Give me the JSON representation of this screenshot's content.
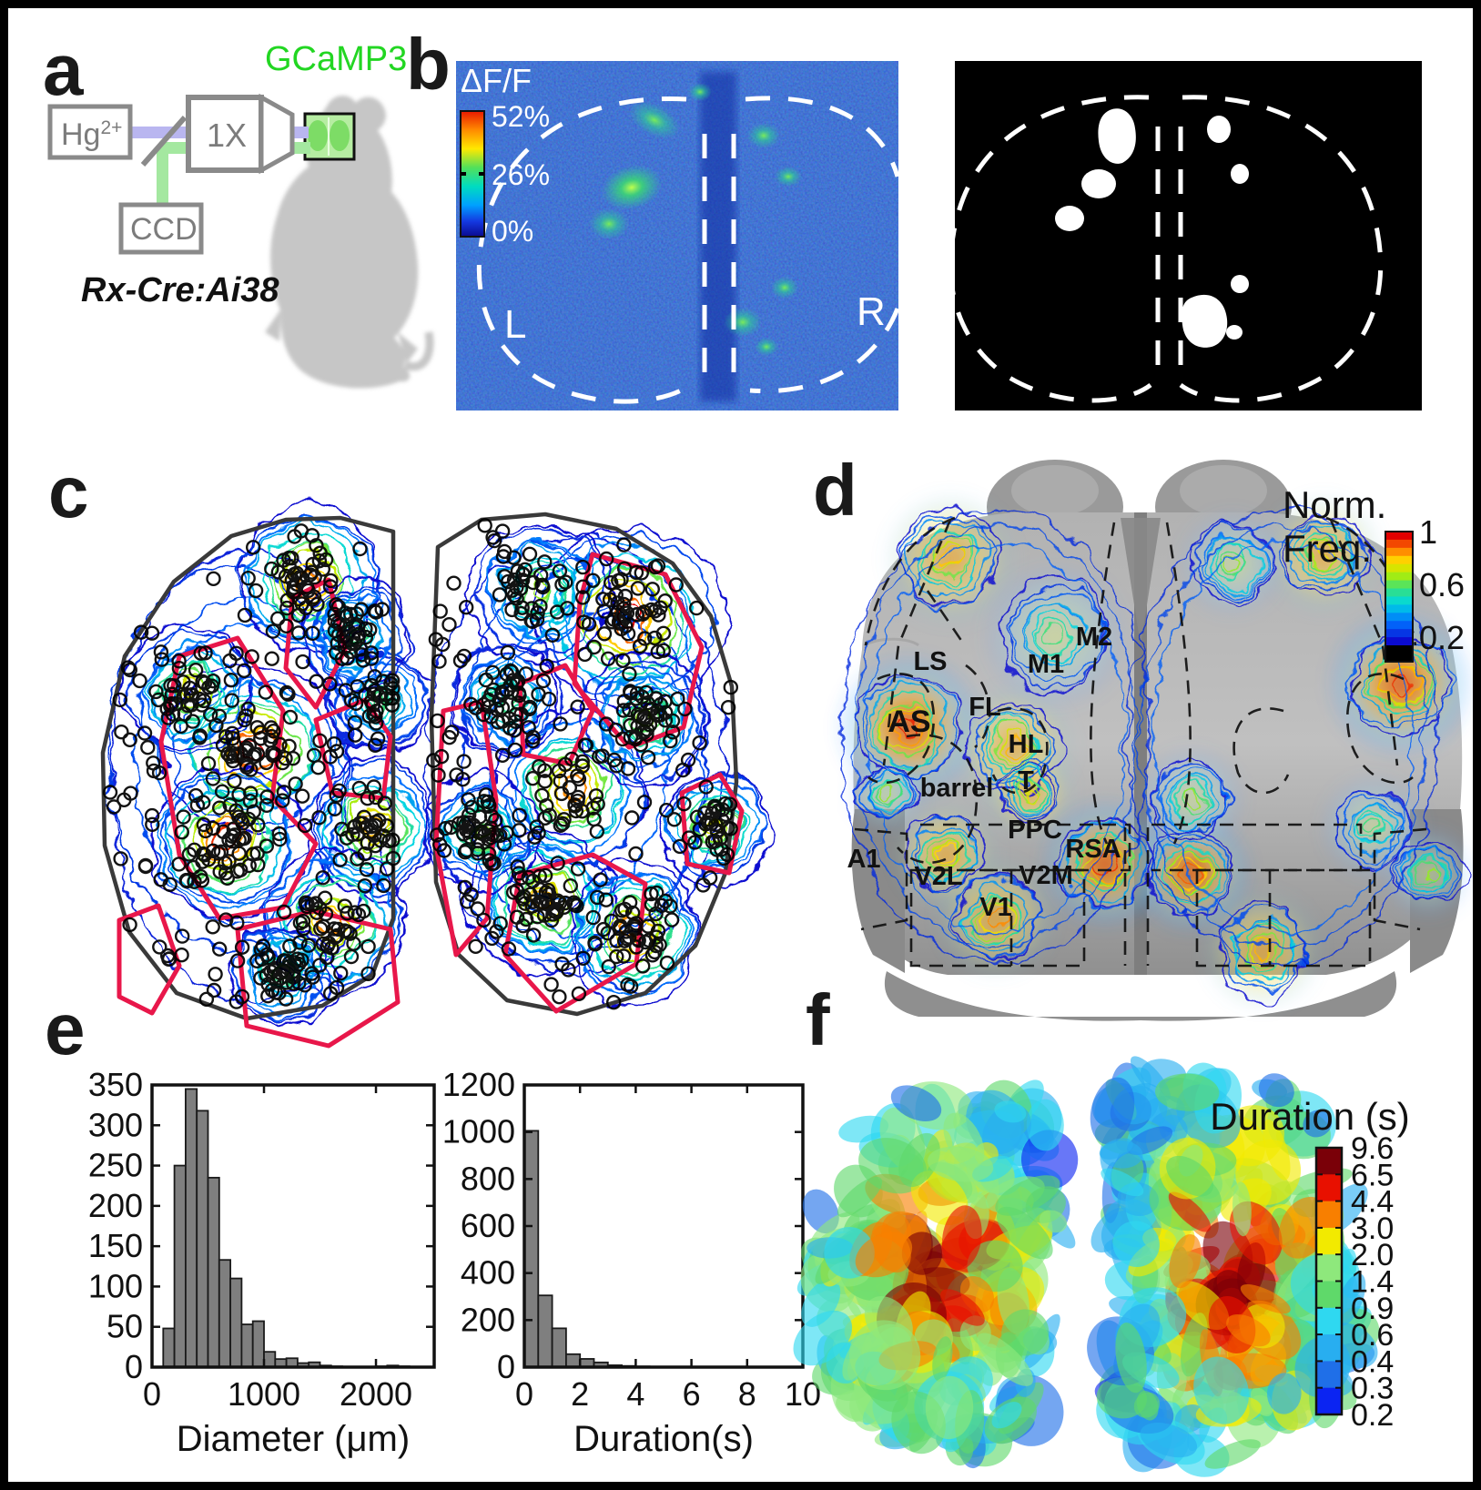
{
  "figure": {
    "panel_labels": {
      "a": "a",
      "b": "b",
      "c": "c",
      "d": "d",
      "e": "e",
      "f": "f"
    },
    "panel_a": {
      "lamp_base": "Hg",
      "lamp_sup": "2+",
      "objective": "1X",
      "camera": "CCD",
      "indicator": "GCaMP3",
      "mouse_line": "Rx-Cre:Ai38",
      "indicator_color": "#22d622",
      "excitation_beam_color": "#b9b6f0",
      "emission_beam_color": "#a4e8a0"
    },
    "panel_b": {
      "map_label": "ΔF/F",
      "colorbar_ticks": [
        "52%",
        "26%",
        "0%"
      ],
      "left_hemisphere_label": "L",
      "right_hemisphere_label": "R"
    },
    "panel_d": {
      "colorbar_title_line1": "Norm.",
      "colorbar_title_line2": "Freq.",
      "colorbar_ticks": [
        "1",
        "0.6",
        "0.2"
      ],
      "regions": [
        "LS",
        "M2",
        "M1",
        "FL",
        "AS",
        "HL",
        "barrel",
        "T",
        "PPC",
        "RSA",
        "A1",
        "V2L",
        "V2M",
        "V1"
      ]
    },
    "panel_f": {
      "colorbar_title": "Duration (s)",
      "colorbar_ticks": [
        "9.6",
        "6.5",
        "4.4",
        "3.0",
        "2.0",
        "1.4",
        "0.9",
        "0.6",
        "0.4",
        "0.3",
        "0.2"
      ],
      "colorbar_colors": [
        "#7a0008",
        "#e81000",
        "#f87f00",
        "#f2ea00",
        "#8ee87c",
        "#5fd96a",
        "#2fd8f0",
        "#28aef0",
        "#1f6fe8",
        "#0b24f2"
      ]
    }
  },
  "chart_data": [
    {
      "type": "bar",
      "title": "",
      "xlabel": "Diameter (μm)",
      "ylabel": "",
      "xlim": [
        0,
        2520
      ],
      "ylim": [
        0,
        350
      ],
      "bin_start": 100,
      "bin_width": 100,
      "values": [
        48,
        250,
        345,
        318,
        235,
        133,
        110,
        53,
        57,
        19,
        10,
        11,
        5,
        6,
        2,
        1,
        0,
        0,
        0,
        1,
        2,
        1
      ],
      "yticks": [
        0,
        50,
        100,
        150,
        200,
        250,
        300,
        350
      ],
      "xticks": [
        0,
        1000,
        2000
      ],
      "bar_color": "#7f7f7f",
      "grid": false,
      "legend": null
    },
    {
      "type": "bar",
      "title": "",
      "xlabel": "Duration(s)",
      "ylabel": "",
      "xlim": [
        0,
        10
      ],
      "ylim": [
        0,
        1200
      ],
      "bin_start": 0,
      "bin_width": 0.5,
      "values": [
        1005,
        305,
        165,
        55,
        35,
        20,
        8,
        5,
        3,
        2,
        1,
        1,
        0,
        0,
        1,
        0,
        0,
        0,
        0,
        1
      ],
      "yticks": [
        0,
        200,
        400,
        600,
        800,
        1000,
        1200
      ],
      "xticks": [
        0,
        2,
        4,
        6,
        8,
        10
      ],
      "bar_color": "#7f7f7f",
      "grid": false,
      "legend": null
    }
  ]
}
